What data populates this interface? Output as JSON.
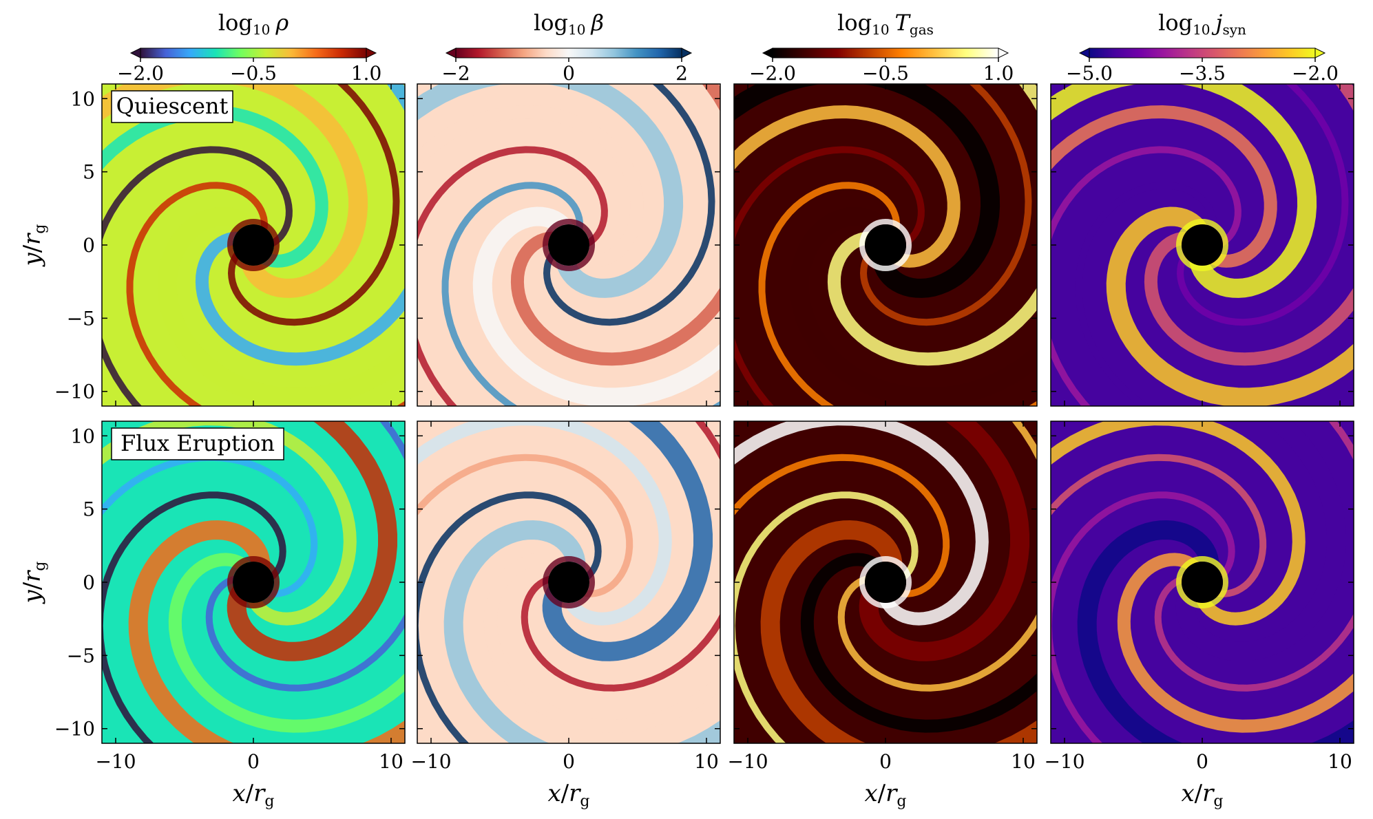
{
  "figure": {
    "columns": [
      {
        "quantity": "log10 rho",
        "label_main": "log",
        "label_sub": "10",
        "label_symbol": "ρ",
        "label_symbol_sub": "",
        "colormap": "turbo",
        "cbar_ticks": [
          "−2.0",
          "−0.5",
          "1.0"
        ],
        "cbar_range": [
          -2.0,
          1.0
        ]
      },
      {
        "quantity": "log10 beta",
        "label_main": "log",
        "label_sub": "10",
        "label_symbol": "β",
        "label_symbol_sub": "",
        "colormap": "RdBu",
        "cbar_ticks": [
          "−2",
          "0",
          "2"
        ],
        "cbar_range": [
          -2,
          2
        ]
      },
      {
        "quantity": "log10 T_gas",
        "label_main": "log",
        "label_sub": "10",
        "label_symbol": "T",
        "label_symbol_sub": "gas",
        "colormap": "afmhot",
        "cbar_ticks": [
          "−2.0",
          "−0.5",
          "1.0"
        ],
        "cbar_range": [
          -2.0,
          1.0
        ]
      },
      {
        "quantity": "log10 j_syn",
        "label_main": "log",
        "label_sub": "10",
        "label_symbol": "j",
        "label_symbol_sub": "syn",
        "colormap": "plasma",
        "cbar_ticks": [
          "−5.0",
          "−3.5",
          "−2.0"
        ],
        "cbar_range": [
          -5.0,
          -2.0
        ]
      }
    ],
    "rows": [
      {
        "state_label": "Quiescent"
      },
      {
        "state_label": "Flux Eruption"
      }
    ],
    "axes": {
      "x_label_var": "x",
      "x_label_den": "r",
      "x_label_sub": "g",
      "y_label_var": "y",
      "y_label_den": "r",
      "y_label_sub": "g",
      "x_ticks": [
        "−10",
        "0",
        "10"
      ],
      "y_ticks": [
        "10",
        "5",
        "0",
        "−5",
        "−10"
      ]
    }
  },
  "chart_data": [
    {
      "type": "heatmap",
      "title": "log10 ρ",
      "state": "Quiescent",
      "xlabel": "x/r_g",
      "ylabel": "y/r_g",
      "xlim": [
        -11,
        11
      ],
      "ylim": [
        -11,
        11
      ],
      "colorbar": [
        -2.0,
        1.0
      ],
      "colormap": "turbo"
    },
    {
      "type": "heatmap",
      "title": "log10 β",
      "state": "Quiescent",
      "xlabel": "x/r_g",
      "xlim": [
        -11,
        11
      ],
      "ylim": [
        -11,
        11
      ],
      "colorbar": [
        -2,
        2
      ],
      "colormap": "RdBu"
    },
    {
      "type": "heatmap",
      "title": "log10 T_gas",
      "state": "Quiescent",
      "xlabel": "x/r_g",
      "xlim": [
        -11,
        11
      ],
      "ylim": [
        -11,
        11
      ],
      "colorbar": [
        -2.0,
        1.0
      ],
      "colormap": "afmhot"
    },
    {
      "type": "heatmap",
      "title": "log10 j_syn",
      "state": "Quiescent",
      "xlabel": "x/r_g",
      "xlim": [
        -11,
        11
      ],
      "ylim": [
        -11,
        11
      ],
      "colorbar": [
        -5.0,
        -2.0
      ],
      "colormap": "plasma"
    },
    {
      "type": "heatmap",
      "title": "log10 ρ",
      "state": "Flux Eruption",
      "xlabel": "x/r_g",
      "ylabel": "y/r_g",
      "xlim": [
        -11,
        11
      ],
      "ylim": [
        -11,
        11
      ],
      "colorbar": [
        -2.0,
        1.0
      ],
      "colormap": "turbo"
    },
    {
      "type": "heatmap",
      "title": "log10 β",
      "state": "Flux Eruption",
      "xlabel": "x/r_g",
      "xlim": [
        -11,
        11
      ],
      "ylim": [
        -11,
        11
      ],
      "colorbar": [
        -2,
        2
      ],
      "colormap": "RdBu"
    },
    {
      "type": "heatmap",
      "title": "log10 T_gas",
      "state": "Flux Eruption",
      "xlabel": "x/r_g",
      "xlim": [
        -11,
        11
      ],
      "ylim": [
        -11,
        11
      ],
      "colorbar": [
        -2.0,
        1.0
      ],
      "colormap": "afmhot"
    },
    {
      "type": "heatmap",
      "title": "log10 j_syn",
      "state": "Flux Eruption",
      "xlabel": "x/r_g",
      "xlim": [
        -11,
        11
      ],
      "ylim": [
        -11,
        11
      ],
      "colorbar": [
        -5.0,
        -2.0
      ],
      "colormap": "plasma"
    }
  ],
  "colormaps": {
    "turbo": [
      "#30123b",
      "#4662d7",
      "#36aaf9",
      "#1ae4b6",
      "#72fe5e",
      "#c8ef34",
      "#faba39",
      "#f66b19",
      "#ca2a04",
      "#7a0403"
    ],
    "RdBu": [
      "#67001f",
      "#b2182b",
      "#d6604d",
      "#f4a582",
      "#fddbc7",
      "#f7f7f7",
      "#d1e5f0",
      "#92c5de",
      "#4393c3",
      "#2166ac",
      "#053061"
    ],
    "afmhot": [
      "#000000",
      "#400000",
      "#800000",
      "#c04000",
      "#ff8000",
      "#ffc040",
      "#ffff80",
      "#ffffff"
    ],
    "plasma": [
      "#0d0887",
      "#46039f",
      "#7201a8",
      "#9c179e",
      "#bd3786",
      "#d8576b",
      "#ed7953",
      "#fb9f3a",
      "#fdca26",
      "#f0f921"
    ]
  }
}
